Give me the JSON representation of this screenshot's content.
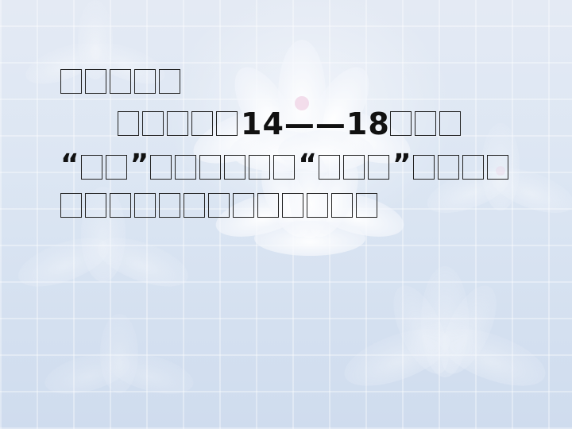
{
  "slide": {
    "line1": "",
    "line2_num": "14——18",
    "quote_open": "“",
    "quote_close": "”"
  }
}
